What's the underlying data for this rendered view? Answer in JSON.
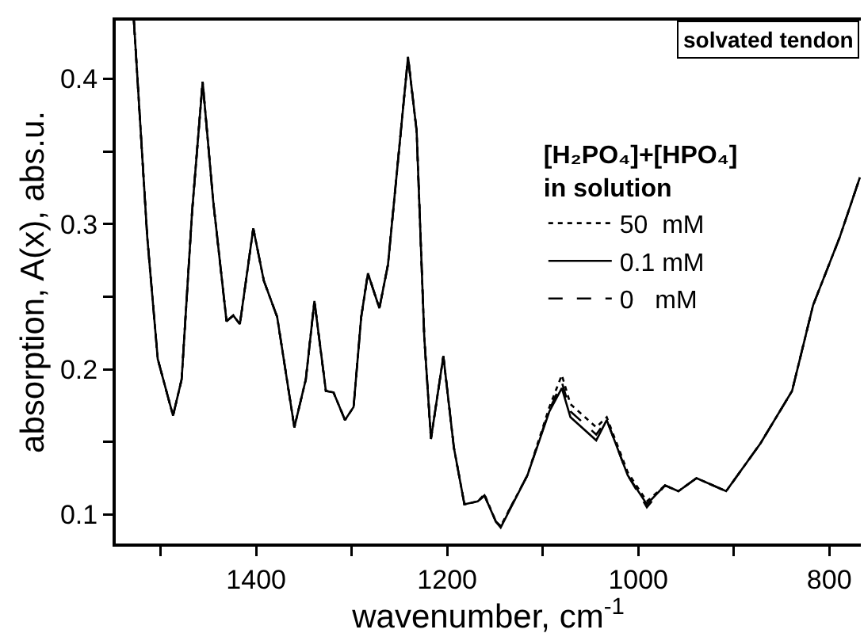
{
  "chart_data": {
    "type": "line",
    "xlabel": "wavenumber, cm$^{-1}$",
    "ylabel": "absorption, A(x), abs.u.",
    "legend_title": "[H₂PO₄]+[HPO₄]\nin solution",
    "legend": "right",
    "grid": false,
    "marker": "none",
    "annotations": [
      "solvated tendon"
    ],
    "xlim": [
      1547,
      767
    ],
    "xticks": [
      {
        "value": 1500,
        "label": null
      },
      1400,
      {
        "value": 1300,
        "label": null
      },
      1200,
      {
        "value": 1100,
        "label": null
      },
      1000,
      {
        "value": 900,
        "label": null
      },
      800
    ],
    "ylim": [
      0.08,
      0.44
    ],
    "yticks": [
      0.1,
      {
        "value": 0.15,
        "label": null
      },
      0.2,
      {
        "value": 0.25,
        "label": null
      },
      0.3,
      {
        "value": 0.35,
        "label": null
      },
      0.4
    ],
    "x": [
      1528,
      1514,
      1503,
      1487,
      1478,
      1467,
      1456,
      1445,
      1431,
      1424,
      1417,
      1403,
      1392,
      1378,
      1360,
      1348,
      1339,
      1327,
      1319,
      1307,
      1298,
      1290,
      1283,
      1271,
      1262,
      1241,
      1232,
      1224,
      1217,
      1204,
      1193,
      1182,
      1168,
      1161,
      1149,
      1144,
      1116,
      1093,
      1080,
      1071,
      1044,
      1033,
      1011,
      991,
      972,
      958,
      939,
      908,
      872,
      839,
      817,
      789,
      768
    ],
    "series": [
      {
        "name": "50  mM",
        "color": "#000000",
        "line_style": "dotted",
        "values": [
          0.44,
          0.291,
          0.207,
          0.168,
          0.193,
          0.309,
          0.398,
          0.316,
          0.233,
          0.237,
          0.231,
          0.297,
          0.261,
          0.236,
          0.16,
          0.193,
          0.247,
          0.185,
          0.184,
          0.165,
          0.174,
          0.236,
          0.266,
          0.242,
          0.272,
          0.415,
          0.364,
          0.222,
          0.152,
          0.209,
          0.146,
          0.107,
          0.109,
          0.114,
          0.095,
          0.092,
          0.127,
          0.174,
          0.196,
          0.176,
          0.16,
          0.167,
          0.129,
          0.109,
          0.12,
          0.116,
          0.125,
          0.116,
          0.149,
          0.185,
          0.244,
          0.291,
          0.332
        ]
      },
      {
        "name": "0.1 mM",
        "color": "#000000",
        "line_style": "solid",
        "values": [
          0.44,
          0.291,
          0.207,
          0.168,
          0.193,
          0.309,
          0.398,
          0.316,
          0.233,
          0.237,
          0.231,
          0.297,
          0.261,
          0.236,
          0.16,
          0.193,
          0.247,
          0.185,
          0.184,
          0.165,
          0.174,
          0.236,
          0.266,
          0.242,
          0.272,
          0.415,
          0.364,
          0.222,
          0.152,
          0.209,
          0.146,
          0.107,
          0.109,
          0.113,
          0.095,
          0.091,
          0.127,
          0.171,
          0.187,
          0.167,
          0.151,
          0.165,
          0.127,
          0.107,
          0.12,
          0.116,
          0.125,
          0.116,
          0.149,
          0.185,
          0.244,
          0.291,
          0.332
        ]
      },
      {
        "name": "0   mM",
        "color": "#000000",
        "line_style": "dashed",
        "values": [
          0.44,
          0.291,
          0.207,
          0.168,
          0.193,
          0.309,
          0.398,
          0.316,
          0.233,
          0.237,
          0.231,
          0.297,
          0.261,
          0.236,
          0.16,
          0.193,
          0.247,
          0.185,
          0.184,
          0.165,
          0.174,
          0.236,
          0.266,
          0.242,
          0.272,
          0.415,
          0.364,
          0.222,
          0.152,
          0.209,
          0.146,
          0.107,
          0.109,
          0.113,
          0.095,
          0.092,
          0.127,
          0.172,
          0.191,
          0.171,
          0.155,
          0.165,
          0.127,
          0.105,
          0.12,
          0.116,
          0.125,
          0.116,
          0.149,
          0.185,
          0.244,
          0.291,
          0.332
        ]
      }
    ]
  }
}
